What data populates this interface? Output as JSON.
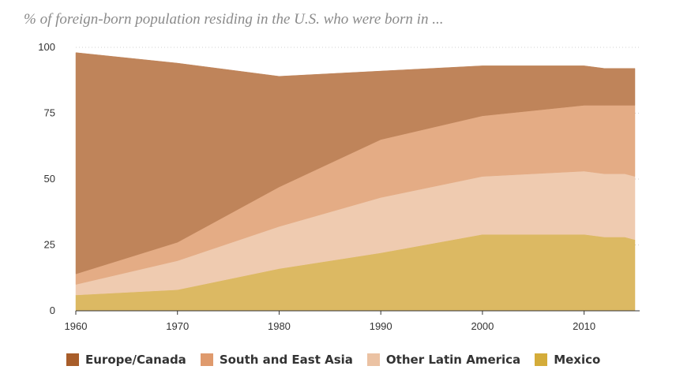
{
  "chart_data": {
    "type": "area",
    "stacked": true,
    "title": "% of foreign-born population residing in the U.S. who were born in ...",
    "xlabel": "",
    "ylabel": "",
    "x": [
      1960,
      1970,
      1980,
      1990,
      2000,
      2010,
      2012,
      2014,
      2015
    ],
    "xticks": [
      "1960",
      "1970",
      "1980",
      "1990",
      "2000",
      "2010"
    ],
    "xlim": [
      1960,
      2015
    ],
    "yticks": [
      "0",
      "25",
      "50",
      "75",
      "100"
    ],
    "ylim": [
      0,
      100
    ],
    "grid": "horizontal dotted",
    "legend_position": "bottom",
    "series": [
      {
        "name": "Mexico",
        "color": "#dcb963",
        "values": [
          6,
          8,
          16,
          22,
          29,
          29,
          28,
          28,
          27
        ]
      },
      {
        "name": "Other Latin America",
        "color": "#efcbb0",
        "values": [
          4,
          11,
          16,
          21,
          22,
          24,
          24,
          24,
          24
        ]
      },
      {
        "name": "South and East Asia",
        "color": "#e4ac85",
        "values": [
          4,
          7,
          15,
          22,
          23,
          25,
          26,
          26,
          27
        ]
      },
      {
        "name": "Europe/Canada",
        "color": "#bf845a",
        "values": [
          84,
          68,
          42,
          26,
          19,
          15,
          14,
          14,
          14
        ]
      }
    ],
    "legend": [
      {
        "label": "Europe/Canada",
        "color": "#a85d2a"
      },
      {
        "label": "South and East Asia",
        "color": "#df9a6d"
      },
      {
        "label": "Other Latin America",
        "color": "#ebc2a3"
      },
      {
        "label": "Mexico",
        "color": "#d4ac3a"
      }
    ]
  }
}
